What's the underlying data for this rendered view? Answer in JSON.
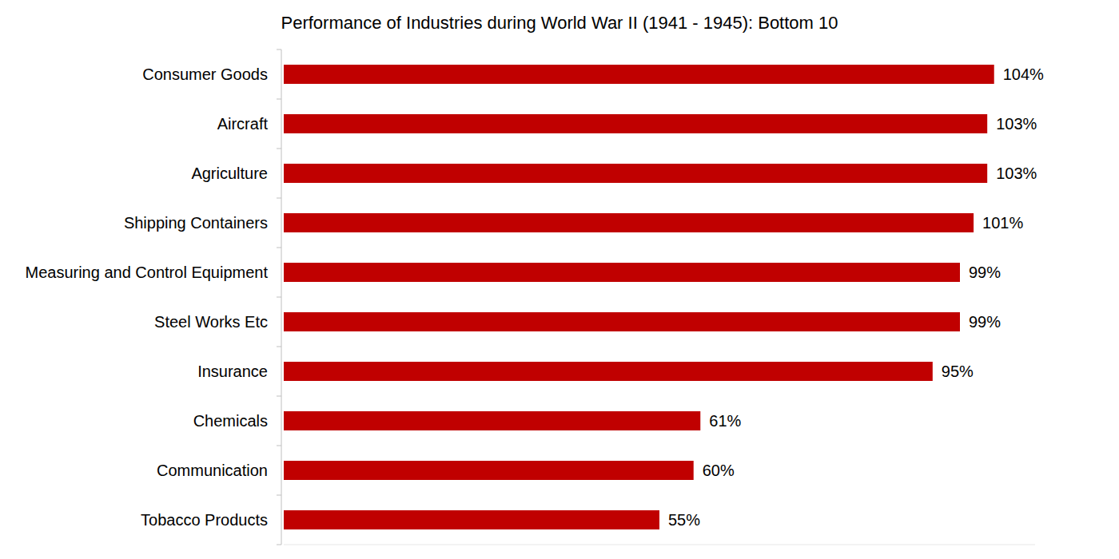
{
  "chart_data": {
    "type": "bar",
    "orientation": "horizontal",
    "title": "Performance of Industries during World War II (1941 - 1945): Bottom 10",
    "categories": [
      "Consumer Goods",
      "Aircraft",
      "Agriculture",
      "Shipping Containers",
      "Measuring and Control Equipment",
      "Steel Works Etc",
      "Insurance",
      "Chemicals",
      "Communication",
      "Tobacco Products"
    ],
    "values": [
      104,
      103,
      103,
      101,
      99,
      99,
      95,
      61,
      60,
      55
    ],
    "value_labels": [
      "104%",
      "103%",
      "103%",
      "101%",
      "99%",
      "99%",
      "95%",
      "61%",
      "60%",
      "55%"
    ],
    "color": "#c00000",
    "xlim": [
      0,
      110
    ],
    "data_labels": true,
    "tick_labels": "y",
    "grid": false
  }
}
